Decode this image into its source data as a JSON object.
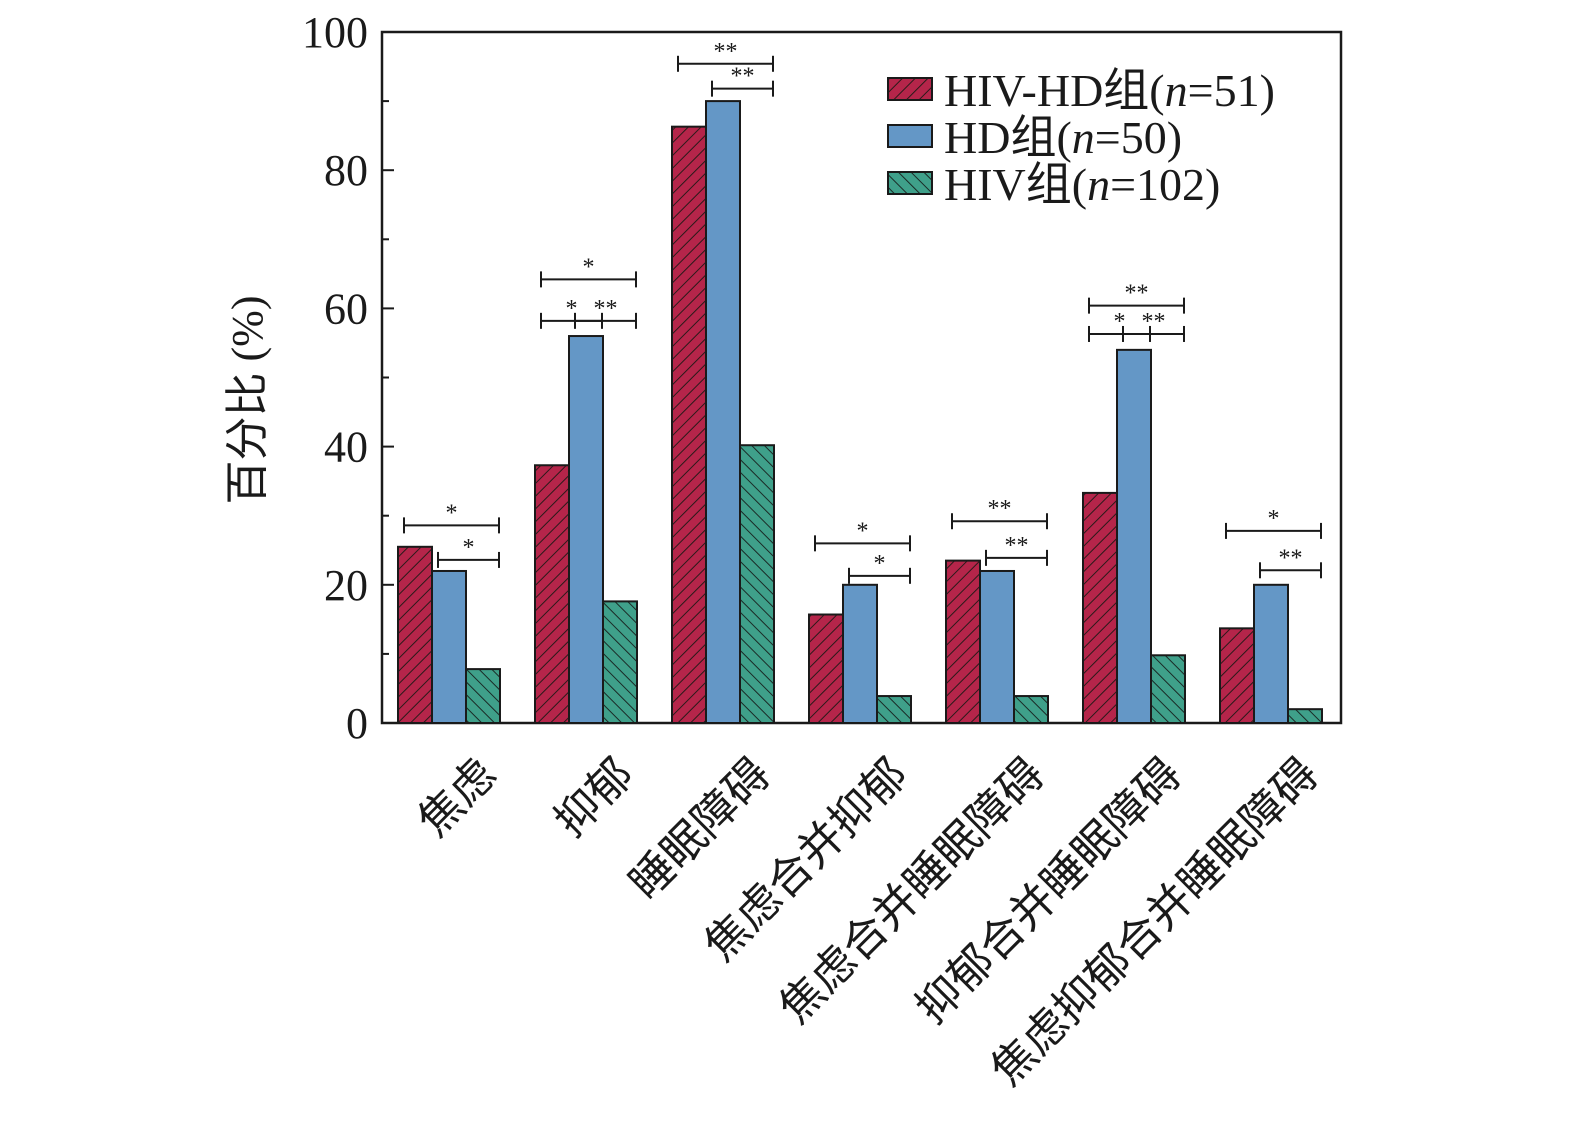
{
  "chart_data": {
    "type": "bar",
    "ylabel": "百分比 (%)",
    "xlabel": "",
    "ylim": [
      0,
      100
    ],
    "yticks": [
      0,
      20,
      40,
      60,
      80,
      100
    ],
    "ytick_labels": [
      "0",
      "20",
      "40",
      "60",
      "80",
      "100"
    ],
    "grid": false,
    "legend_position": "top-right",
    "categories": [
      "焦虑",
      "抑郁",
      "睡眠障碍",
      "焦虑合并抑郁",
      "焦虑合并睡眠障碍",
      "抑郁合并睡眠障碍",
      "焦虑抑郁合并睡眠障碍"
    ],
    "series": [
      {
        "name": "HIV-HD组(n=51)",
        "name_prefix": "HIV-HD组(",
        "name_n": "n",
        "name_suffix": "=51)",
        "color": "#b5254a",
        "pattern": "forward-hatch",
        "values": [
          25.5,
          37.3,
          86.3,
          15.7,
          23.5,
          33.3,
          13.7
        ]
      },
      {
        "name": "HD组(n=50)",
        "name_prefix": "HD组(",
        "name_n": "n",
        "name_suffix": "=50)",
        "color": "#6497c6",
        "pattern": "solid",
        "values": [
          22,
          56,
          90,
          20,
          22,
          54,
          20
        ]
      },
      {
        "name": "HIV组(n=102)",
        "name_prefix": "HIV组(",
        "name_n": "n",
        "name_suffix": "=102)",
        "color": "#3fa08a",
        "pattern": "back-hatch",
        "values": [
          7.8,
          17.6,
          40.2,
          3.9,
          3.9,
          9.8,
          2.0
        ]
      }
    ],
    "significance": [
      {
        "category": 0,
        "from": 0,
        "to": 2,
        "label": "*",
        "y": 28.6
      },
      {
        "category": 0,
        "from": 1,
        "to": 2,
        "label": "*",
        "y": 23.6
      },
      {
        "category": 1,
        "from": 0,
        "to": 2,
        "label": "*",
        "y": 64.2
      },
      {
        "category": 1,
        "from": 0,
        "to": 1,
        "label": "*",
        "y": 58.2
      },
      {
        "category": 1,
        "from": 1,
        "to": 2,
        "label": "**",
        "y": 58.2
      },
      {
        "category": 2,
        "from": 0,
        "to": 2,
        "label": "**",
        "y": 95.4
      },
      {
        "category": 2,
        "from": 1,
        "to": 2,
        "label": "**",
        "y": 91.8
      },
      {
        "category": 3,
        "from": 0,
        "to": 2,
        "label": "*",
        "y": 26.0
      },
      {
        "category": 3,
        "from": 1,
        "to": 2,
        "label": "*",
        "y": 21.3
      },
      {
        "category": 4,
        "from": 0,
        "to": 2,
        "label": "**",
        "y": 29.2
      },
      {
        "category": 4,
        "from": 1,
        "to": 2,
        "label": "**",
        "y": 23.9
      },
      {
        "category": 5,
        "from": 0,
        "to": 2,
        "label": "**",
        "y": 60.4
      },
      {
        "category": 5,
        "from": 0,
        "to": 1,
        "label": "*",
        "y": 56.3
      },
      {
        "category": 5,
        "from": 1,
        "to": 2,
        "label": "**",
        "y": 56.3
      },
      {
        "category": 6,
        "from": 0,
        "to": 2,
        "label": "*",
        "y": 27.8
      },
      {
        "category": 6,
        "from": 1,
        "to": 2,
        "label": "**",
        "y": 22.1
      }
    ]
  }
}
